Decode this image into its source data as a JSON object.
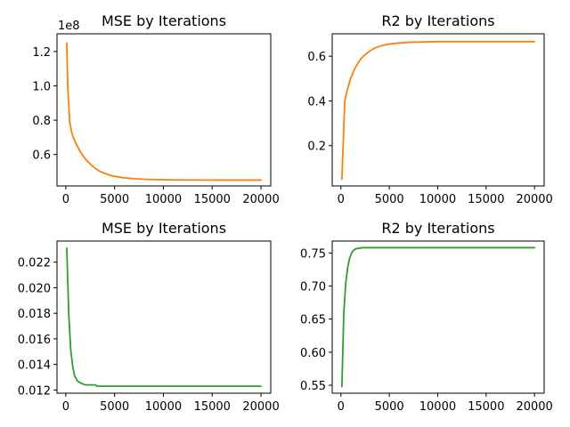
{
  "chart_data": [
    {
      "type": "line",
      "title": "MSE by Iterations",
      "color": "#ff7f0e",
      "x": [
        100,
        200,
        400,
        600,
        800,
        1000,
        1500,
        2000,
        2500,
        3000,
        3500,
        4000,
        4500,
        5000,
        6000,
        7000,
        8000,
        9000,
        10000,
        12000,
        14000,
        16000,
        18000,
        20000
      ],
      "y": [
        125000000,
        100000000,
        79000000,
        73000000,
        69500000,
        67000000,
        61500000,
        57500000,
        54500000,
        52000000,
        50200000,
        49000000,
        48000000,
        47300000,
        46400000,
        45900000,
        45600000,
        45400000,
        45300000,
        45200000,
        45150000,
        45100000,
        45100000,
        45100000
      ],
      "xlim": [
        -900,
        21000
      ],
      "ylim": [
        41700000,
        130300000
      ],
      "xticks": [
        0,
        5000,
        10000,
        15000,
        20000
      ],
      "xtick_labels": [
        "0",
        "5000",
        "10000",
        "15000",
        "20000"
      ],
      "yticks": [
        60000000,
        80000000,
        100000000,
        120000000
      ],
      "ytick_labels": [
        "0.6",
        "0.8",
        "1.0",
        "1.2"
      ],
      "offset_label": "1e8"
    },
    {
      "type": "line",
      "title": "R2 by Iterations",
      "color": "#ff7f0e",
      "x": [
        100,
        400,
        600,
        800,
        1000,
        1500,
        2000,
        2500,
        3000,
        3500,
        4000,
        4500,
        5000,
        6000,
        7000,
        8000,
        10000,
        12000,
        15000,
        20000
      ],
      "y": [
        0.05,
        0.4,
        0.44,
        0.47,
        0.5,
        0.55,
        0.585,
        0.607,
        0.624,
        0.636,
        0.644,
        0.65,
        0.654,
        0.659,
        0.662,
        0.663,
        0.665,
        0.665,
        0.665,
        0.665
      ],
      "xlim": [
        -900,
        21000
      ],
      "ylim": [
        0.02,
        0.7
      ],
      "xticks": [
        0,
        5000,
        10000,
        15000,
        20000
      ],
      "xtick_labels": [
        "0",
        "5000",
        "10000",
        "15000",
        "20000"
      ],
      "yticks": [
        0.2,
        0.4,
        0.6
      ],
      "ytick_labels": [
        "0.2",
        "0.4",
        "0.6"
      ]
    },
    {
      "type": "line",
      "title": "MSE by Iterations",
      "color": "#2ca02c",
      "x": [
        100,
        300,
        500,
        700,
        900,
        1200,
        1500,
        2000,
        2500,
        3000,
        3200,
        5000,
        10000,
        15000,
        20000
      ],
      "y": [
        0.0231,
        0.018,
        0.0152,
        0.0139,
        0.0131,
        0.0127,
        0.01255,
        0.0124,
        0.0124,
        0.0124,
        0.0123,
        0.0123,
        0.0123,
        0.0123,
        0.0123
      ],
      "xlim": [
        -900,
        21000
      ],
      "ylim": [
        0.01175,
        0.02365
      ],
      "xticks": [
        0,
        5000,
        10000,
        15000,
        20000
      ],
      "xtick_labels": [
        "0",
        "5000",
        "10000",
        "15000",
        "20000"
      ],
      "yticks": [
        0.012,
        0.014,
        0.016,
        0.018,
        0.02,
        0.022
      ],
      "ytick_labels": [
        "0.012",
        "0.014",
        "0.016",
        "0.018",
        "0.020",
        "0.022"
      ]
    },
    {
      "type": "line",
      "title": "R2 by Iterations",
      "color": "#2ca02c",
      "x": [
        100,
        300,
        500,
        700,
        900,
        1100,
        1300,
        1500,
        1800,
        2200,
        3000,
        5000,
        10000,
        15000,
        20000
      ],
      "y": [
        0.548,
        0.66,
        0.705,
        0.728,
        0.742,
        0.75,
        0.754,
        0.756,
        0.757,
        0.758,
        0.758,
        0.758,
        0.758,
        0.758,
        0.758
      ],
      "xlim": [
        -900,
        21000
      ],
      "ylim": [
        0.538,
        0.768
      ],
      "xticks": [
        0,
        5000,
        10000,
        15000,
        20000
      ],
      "xtick_labels": [
        "0",
        "5000",
        "10000",
        "15000",
        "20000"
      ],
      "yticks": [
        0.55,
        0.6,
        0.65,
        0.7,
        0.75
      ],
      "ytick_labels": [
        "0.55",
        "0.60",
        "0.65",
        "0.70",
        "0.75"
      ]
    }
  ]
}
